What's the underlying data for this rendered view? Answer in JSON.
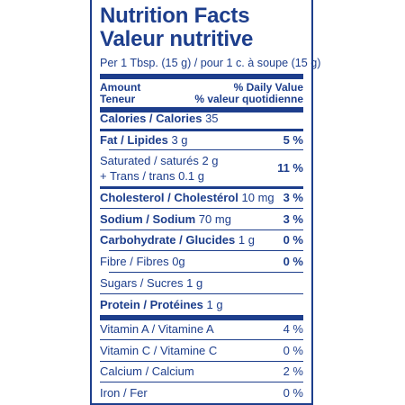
{
  "title_en": "Nutrition Facts",
  "title_fr": "Valeur nutritive",
  "serving": "Per 1 Tbsp. (15 g) / pour 1 c. à soupe (15 g)",
  "header": {
    "amount": "Amount",
    "teneur": "Teneur",
    "dv_en": "% Daily Value",
    "dv_fr": "% valeur quotidienne"
  },
  "calories": {
    "label": "Calories / Calories",
    "value": "35"
  },
  "fat": {
    "label": "Fat / Lipides",
    "value": "3 g",
    "dv": "5 %"
  },
  "saturated": {
    "label": "Saturated / saturés",
    "value": "2 g"
  },
  "trans": {
    "label": "+ Trans / trans",
    "value": "0.1 g",
    "dv": "11 %"
  },
  "cholesterol": {
    "label": "Cholesterol / Cholestérol",
    "value": "10 mg",
    "dv": "3 %"
  },
  "sodium": {
    "label": "Sodium / Sodium",
    "value": "70 mg",
    "dv": "3 %"
  },
  "carbohydrate": {
    "label": "Carbohydrate / Glucides",
    "value": "1 g",
    "dv": "0 %"
  },
  "fibre": {
    "label": "Fibre / Fibres",
    "value": "0g",
    "dv": "0 %"
  },
  "sugars": {
    "label": "Sugars / Sucres",
    "value": "1 g"
  },
  "protein": {
    "label": "Protein / Protéines",
    "value": "1 g"
  },
  "vitamin_a": {
    "label": "Vitamin A / Vitamine A",
    "dv": "4 %"
  },
  "vitamin_c": {
    "label": "Vitamin C / Vitamine C",
    "dv": "0 %"
  },
  "calcium": {
    "label": "Calcium / Calcium",
    "dv": "2 %"
  },
  "iron": {
    "label": "Iron / Fer",
    "dv": "0 %"
  },
  "colors": {
    "ink": "#1d3e8c",
    "background": "#ffffff"
  }
}
